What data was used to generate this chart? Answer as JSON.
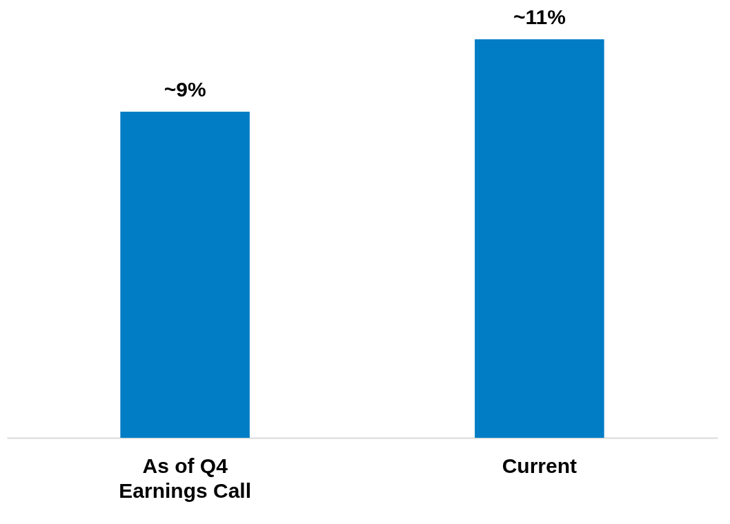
{
  "chart_data": {
    "type": "bar",
    "categories": [
      "As of Q4 Earnings Call",
      "Current"
    ],
    "values": [
      9,
      11
    ],
    "value_labels": [
      "~9%",
      "~11%"
    ],
    "color": "#007dc5",
    "grid": false
  }
}
